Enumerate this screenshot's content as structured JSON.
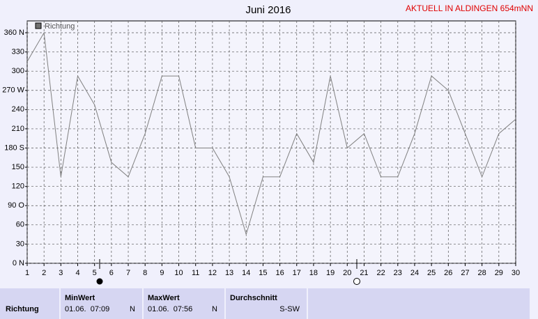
{
  "chart_data": {
    "type": "line",
    "title": "Juni 2016",
    "subtitle": "AKTUELL IN ALDINGEN 654mNN",
    "x": [
      1,
      2,
      3,
      4,
      5,
      6,
      7,
      8,
      9,
      10,
      11,
      12,
      13,
      14,
      15,
      16,
      17,
      18,
      19,
      20,
      21,
      22,
      23,
      24,
      25,
      26,
      27,
      28,
      29,
      30
    ],
    "series": [
      {
        "name": "Richtung",
        "color": "#808080",
        "values": [
          315,
          360,
          135,
          292.5,
          247.5,
          157.5,
          135,
          202.5,
          292.5,
          292.5,
          180,
          180,
          135,
          45,
          135,
          135,
          202.5,
          157.5,
          292.5,
          180,
          202.5,
          135,
          135,
          202.5,
          292.5,
          270,
          202.5,
          135,
          202.5,
          225
        ]
      }
    ],
    "xlim": [
      1,
      30
    ],
    "xticks": [
      1,
      2,
      3,
      4,
      5,
      6,
      7,
      8,
      9,
      10,
      11,
      12,
      13,
      14,
      15,
      16,
      17,
      18,
      19,
      20,
      21,
      22,
      23,
      24,
      25,
      26,
      27,
      28,
      29,
      30
    ],
    "ylim": [
      0,
      360
    ],
    "yticks": [
      {
        "value": 0,
        "label": "0 N"
      },
      30,
      60,
      {
        "value": 90,
        "label": "90 O"
      },
      120,
      150,
      {
        "value": 180,
        "label": "180 S"
      },
      210,
      240,
      {
        "value": 270,
        "label": "270 W"
      },
      300,
      330,
      {
        "value": 360,
        "label": "360 N"
      }
    ],
    "grid": true
  },
  "summary": {
    "row_label": "Richtung",
    "columns": [
      {
        "header": "MinWert",
        "time": "01.06.  07:09",
        "direction": "N"
      },
      {
        "header": "MaxWert",
        "time": "01.06.  07:56",
        "direction": "N"
      },
      {
        "header": "Durchschnitt",
        "direction": "S-SW"
      }
    ]
  }
}
